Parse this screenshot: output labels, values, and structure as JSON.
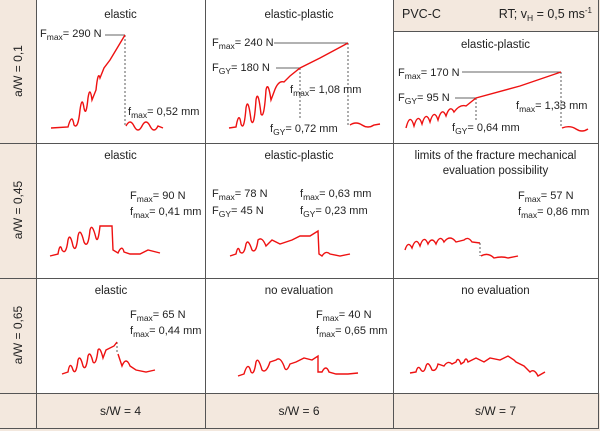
{
  "colors": {
    "curve": "#ee1111",
    "beige": "#f3e8de",
    "grid": "#555555"
  },
  "header": {
    "material": "PVC-C",
    "cond_prefix": "RT; v",
    "cond_sub": "H",
    "cond_value": " = 0,5 ms",
    "cond_sup": "-1"
  },
  "rows": [
    {
      "label": "a/W = 0,1"
    },
    {
      "label": "a/W = 0,45"
    },
    {
      "label": "a/W = 0,65"
    }
  ],
  "columns": [
    {
      "label": "s/W = 4"
    },
    {
      "label": "s/W = 6"
    },
    {
      "label": "s/W = 7"
    }
  ],
  "cells": {
    "r1c1": {
      "title": "elastic",
      "a": {
        "s": "F",
        "sub": "max",
        "v": "= 290 N"
      },
      "b": {
        "s": "f",
        "sub": "max",
        "v": "= 0,52 mm"
      }
    },
    "r1c2": {
      "title": "elastic-plastic",
      "a": {
        "s": "F",
        "sub": "max",
        "v": "= 240 N"
      },
      "b": {
        "s": "F",
        "sub": "GY",
        "v": "= 180 N"
      },
      "c": {
        "s": "f",
        "sub": "max",
        "v": "= 1,08 mm"
      },
      "d": {
        "s": "f",
        "sub": "GY",
        "v": "= 0,72 mm"
      }
    },
    "r1c3": {
      "title": "elastic-plastic",
      "a": {
        "s": "F",
        "sub": "max",
        "v": "= 170 N"
      },
      "b": {
        "s": "F",
        "sub": "GY",
        "v": "= 95 N"
      },
      "c": {
        "s": "f",
        "sub": "max",
        "v": "= 1,33 mm"
      },
      "d": {
        "s": "f",
        "sub": "GY",
        "v": "= 0,64 mm"
      }
    },
    "r2c1": {
      "title": "elastic",
      "a": {
        "s": "F",
        "sub": "max",
        "v": "= 90 N"
      },
      "b": {
        "s": "f",
        "sub": "max",
        "v": "= 0,41 mm"
      }
    },
    "r2c2": {
      "title": "elastic-plastic",
      "a": {
        "s": "F",
        "sub": "max",
        "v": "= 78 N"
      },
      "b": {
        "s": "F",
        "sub": "GY",
        "v": "= 45 N"
      },
      "c": {
        "s": "f",
        "sub": "max",
        "v": "= 0,63 mm"
      },
      "d": {
        "s": "f",
        "sub": "GY",
        "v": "= 0,23 mm"
      }
    },
    "r2c3": {
      "title": "limits of the fracture mechanical",
      "title2": "evaluation possibility",
      "a": {
        "s": "F",
        "sub": "max",
        "v": "= 57 N"
      },
      "b": {
        "s": "f",
        "sub": "max",
        "v": "= 0,86 mm"
      }
    },
    "r3c1": {
      "title": "elastic",
      "a": {
        "s": "F",
        "sub": "max",
        "v": "= 65 N"
      },
      "b": {
        "s": "f",
        "sub": "max",
        "v": "= 0,44 mm"
      }
    },
    "r3c2": {
      "title": "no evaluation",
      "a": {
        "s": "F",
        "sub": "max",
        "v": "= 40 N"
      },
      "b": {
        "s": "f",
        "sub": "max",
        "v": "= 0,65 mm"
      }
    },
    "r3c3": {
      "title": "no evaluation"
    }
  }
}
